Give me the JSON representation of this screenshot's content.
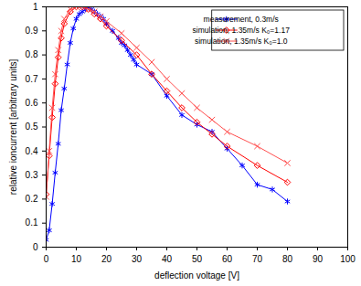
{
  "chart_data": {
    "type": "line",
    "x_label": "deflection voltage [V]",
    "y_label": "relative ioncurrent [arbitrary units]",
    "xlim": [
      0,
      100
    ],
    "xticks": [
      0,
      10,
      20,
      30,
      40,
      50,
      60,
      70,
      80,
      90,
      100
    ],
    "ylim": [
      0,
      1
    ],
    "yticks": [
      0,
      0.1,
      0.2,
      0.3,
      0.4,
      0.5,
      0.6,
      0.7,
      0.8,
      0.9,
      1
    ],
    "grid": false,
    "legend": "top-right",
    "series": [
      {
        "name": "measurement, 0.3m/s",
        "color": "#0000ff",
        "marker": "asterisk",
        "line_style": "solid",
        "x": [
          0,
          1,
          2,
          3,
          4,
          5,
          6,
          7,
          8,
          9,
          10,
          11,
          12,
          13,
          14,
          15,
          16,
          17,
          18,
          19,
          20,
          22,
          24,
          25,
          26,
          27,
          28,
          29,
          30,
          35,
          40,
          45,
          50,
          55,
          60,
          65,
          70,
          75,
          80
        ],
        "values": [
          0.03,
          0.07,
          0.18,
          0.31,
          0.43,
          0.57,
          0.66,
          0.76,
          0.85,
          0.91,
          0.95,
          0.97,
          0.98,
          0.99,
          1.0,
          0.99,
          0.98,
          0.97,
          0.96,
          0.95,
          0.93,
          0.9,
          0.87,
          0.85,
          0.84,
          0.82,
          0.8,
          0.78,
          0.76,
          0.72,
          0.63,
          0.55,
          0.51,
          0.48,
          0.41,
          0.34,
          0.26,
          0.24,
          0.19
        ]
      },
      {
        "name": "simulation, 1.35m/s K₀=1.17",
        "color": "#ff0000",
        "marker": "diamond",
        "line_style": "solid",
        "x": [
          0,
          1,
          2,
          3,
          4,
          5,
          6,
          8,
          10,
          12,
          14,
          16,
          18,
          20,
          25,
          30,
          35,
          40,
          45,
          50,
          55,
          60,
          70,
          80
        ],
        "values": [
          0.22,
          0.38,
          0.54,
          0.68,
          0.79,
          0.87,
          0.93,
          0.98,
          1.0,
          1.0,
          0.99,
          0.97,
          0.95,
          0.92,
          0.86,
          0.8,
          0.72,
          0.65,
          0.58,
          0.52,
          0.47,
          0.42,
          0.34,
          0.27
        ]
      },
      {
        "name": "simulation, 1.35m/s K₀=1.0",
        "color": "#ff5050",
        "marker": "times",
        "line_style": "solid",
        "x": [
          0,
          1,
          2,
          3,
          4,
          5,
          6,
          8,
          10,
          12,
          14,
          16,
          18,
          20,
          25,
          30,
          35,
          40,
          45,
          50,
          55,
          60,
          70,
          80
        ],
        "values": [
          0.21,
          0.4,
          0.58,
          0.72,
          0.82,
          0.9,
          0.95,
          0.99,
          1.0,
          1.0,
          0.99,
          0.98,
          0.96,
          0.94,
          0.89,
          0.83,
          0.77,
          0.7,
          0.64,
          0.58,
          0.53,
          0.48,
          0.42,
          0.35
        ]
      }
    ]
  }
}
